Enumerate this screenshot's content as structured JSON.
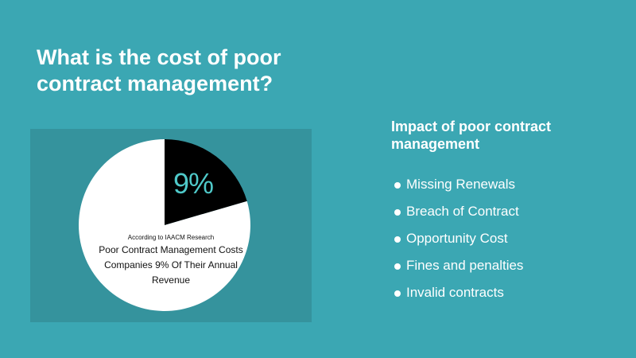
{
  "title": "What is the cost of poor contract management?",
  "chart_data": {
    "type": "pie",
    "title": "",
    "slices": [
      {
        "label": "9%",
        "value": 9,
        "color": "#000000"
      },
      {
        "label": "",
        "value": 91,
        "color": "#ffffff"
      }
    ],
    "source_note": "According to IAACM Research",
    "annotation": "Poor Contract Management Costs Companies 9% Of Their Annual Revenue"
  },
  "impact": {
    "heading": "Impact of poor contract management",
    "items": [
      "Missing Renewals",
      "Breach of Contract",
      "Opportunity Cost",
      "Fines and penalties",
      "Invalid contracts"
    ]
  },
  "colors": {
    "background": "#3ba7b3",
    "panel": "#35939d",
    "highlight_slice": "#000000",
    "rest_slice": "#ffffff",
    "percent_text": "#4fc9c9"
  }
}
